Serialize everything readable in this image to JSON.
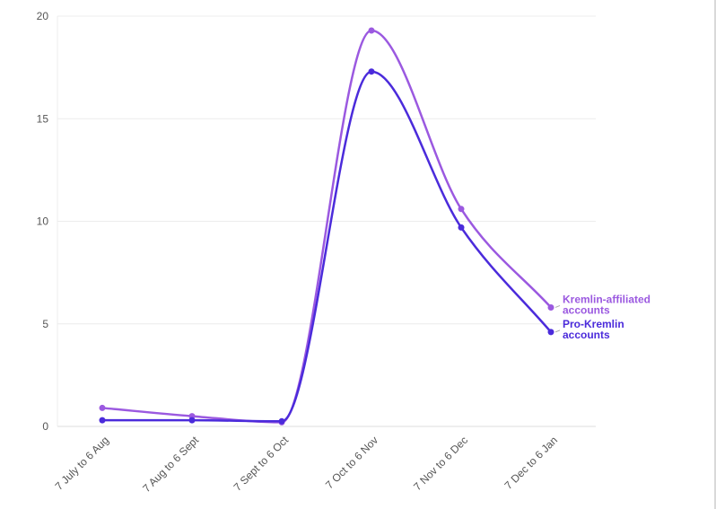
{
  "chart_data": {
    "type": "line",
    "title": "",
    "xlabel": "",
    "ylabel": "",
    "ylim": [
      0,
      20
    ],
    "yticks": [
      "0",
      "5",
      "10",
      "15",
      "20"
    ],
    "categories": [
      "7 July to 6 Aug",
      "7 Aug to 6 Sept",
      "7 Sept to 6 Oct",
      "7 Oct to 6 Nov",
      "7 Nov to 6 Dec",
      "7 Dec to 6 Jan"
    ],
    "grid": true,
    "series": [
      {
        "name": "Kremlin-affiliated accounts",
        "label_lines": [
          "Kremlin-affiliated",
          "accounts"
        ],
        "color": "#9b59e0",
        "values": [
          0.9,
          0.5,
          0.2,
          19.3,
          10.6,
          5.8
        ]
      },
      {
        "name": "Pro-Kremlin accounts",
        "label_lines": [
          "Pro-Kremlin",
          "accounts"
        ],
        "color": "#4b2bdb",
        "values": [
          0.3,
          0.3,
          0.25,
          17.3,
          9.7,
          4.6
        ]
      }
    ]
  }
}
